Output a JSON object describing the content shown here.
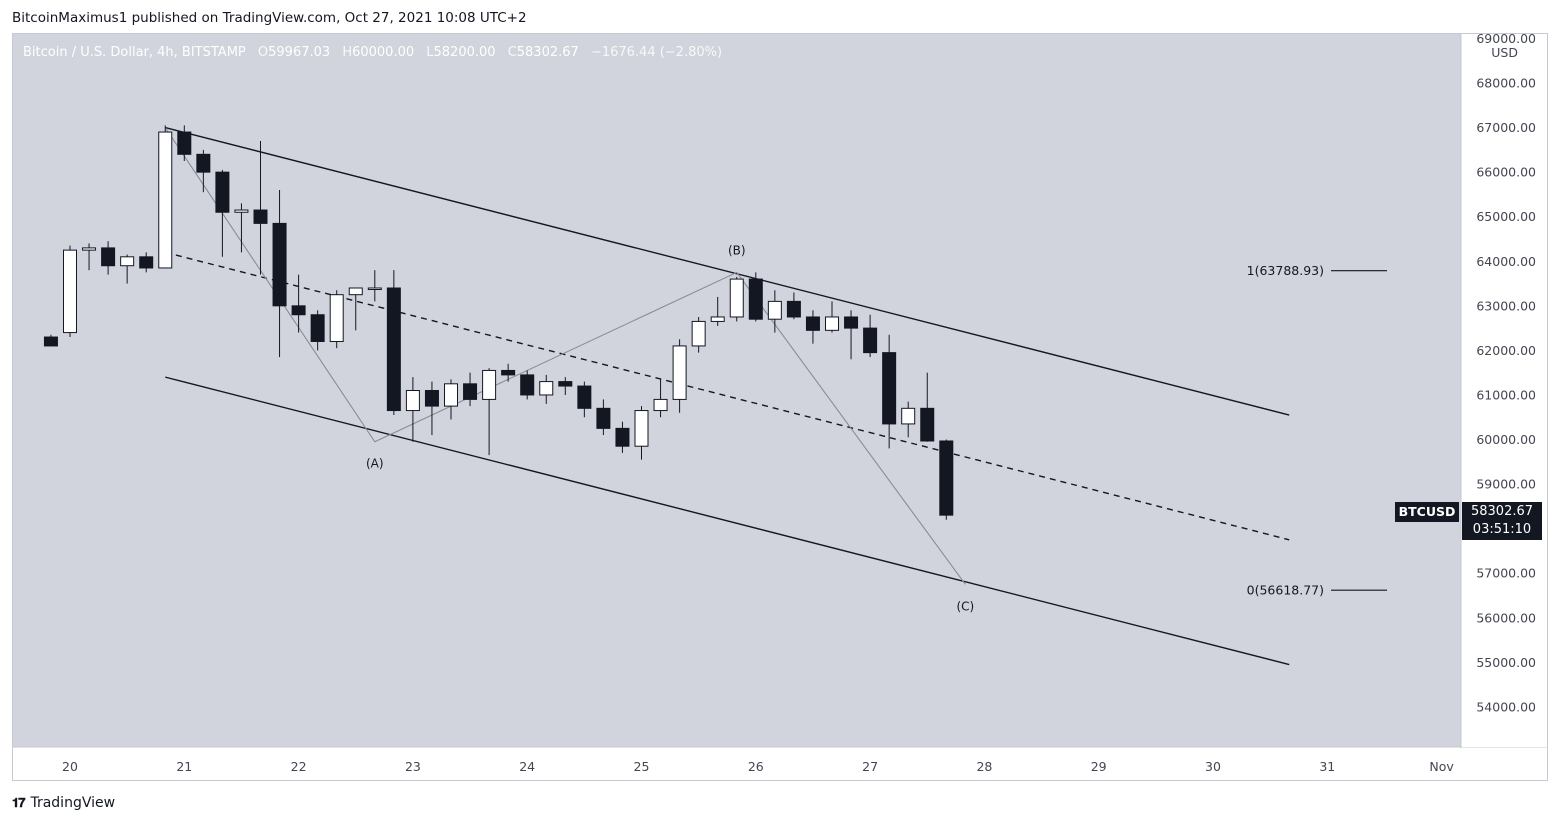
{
  "publish_line": "BitcoinMaximus1 published on TradingView.com, Oct 27, 2021 10:08 UTC+2",
  "legend": {
    "symbol": "Bitcoin / U.S. Dollar, 4h, BITSTAMP",
    "open_label": "O",
    "open": "59967.03",
    "high_label": "H",
    "high": "60000.00",
    "low_label": "L",
    "low": "58200.00",
    "close_label": "C",
    "close": "58302.67",
    "change": "−1676.44 (−2.80%)"
  },
  "footer": {
    "logo_glyph": "𝟏𝟕",
    "brand": "TradingView"
  },
  "price_badge": {
    "symbol": "BTCUSD",
    "price": "58302.67",
    "countdown": "03:51:10"
  },
  "colors": {
    "plot_bg": "#d1d4dc",
    "axis_bg": "#ffffff",
    "bull_fill": "#ffffff",
    "bear_fill": "#131722",
    "candle_outline": "#131722",
    "channel_line": "#131722",
    "wave_line": "#8a8d96",
    "badge_bg": "#131722"
  },
  "chart_data": {
    "type": "candlestick",
    "title": "",
    "currency": "USD",
    "x_labels": [
      "20",
      "21",
      "22",
      "23",
      "24",
      "25",
      "26",
      "27",
      "28",
      "29",
      "30",
      "31",
      "Nov"
    ],
    "y_ticks": [
      54000,
      55000,
      56000,
      57000,
      58000,
      59000,
      60000,
      61000,
      62000,
      63000,
      64000,
      65000,
      66000,
      67000,
      68000,
      69000
    ],
    "y_tick_labels": [
      "54000.00",
      "55000.00",
      "56000.00",
      "57000.00",
      "58000.00",
      "59000.00",
      "60000.00",
      "61000.00",
      "62000.00",
      "63000.00",
      "64000.00",
      "65000.00",
      "66000.00",
      "67000.00",
      "68000.00",
      "69000.00"
    ],
    "ylim": [
      53100,
      69100
    ],
    "candle_interval_hours": 4,
    "candles": [
      {
        "t": "Oct 19 20:00",
        "o": 62300,
        "h": 62350,
        "l": 62100,
        "c": 62100
      },
      {
        "t": "Oct 20 00:00",
        "o": 62400,
        "h": 64350,
        "l": 62300,
        "c": 64250
      },
      {
        "t": "Oct 20 04:00",
        "o": 64250,
        "h": 64400,
        "l": 63800,
        "c": 64300
      },
      {
        "t": "Oct 20 08:00",
        "o": 64300,
        "h": 64450,
        "l": 63700,
        "c": 63900
      },
      {
        "t": "Oct 20 12:00",
        "o": 63900,
        "h": 64150,
        "l": 63500,
        "c": 64100
      },
      {
        "t": "Oct 20 16:00",
        "o": 64100,
        "h": 64200,
        "l": 63750,
        "c": 63850
      },
      {
        "t": "Oct 20 20:00",
        "o": 63850,
        "h": 67050,
        "l": 63850,
        "c": 66900
      },
      {
        "t": "Oct 21 00:00",
        "o": 66900,
        "h": 67050,
        "l": 66250,
        "c": 66400
      },
      {
        "t": "Oct 21 04:00",
        "o": 66400,
        "h": 66500,
        "l": 65550,
        "c": 66000
      },
      {
        "t": "Oct 21 08:00",
        "o": 66000,
        "h": 66050,
        "l": 64100,
        "c": 65100
      },
      {
        "t": "Oct 21 12:00",
        "o": 65100,
        "h": 65300,
        "l": 64200,
        "c": 65150
      },
      {
        "t": "Oct 21 16:00",
        "o": 65150,
        "h": 66700,
        "l": 63700,
        "c": 64850
      },
      {
        "t": "Oct 21 20:00",
        "o": 64850,
        "h": 65600,
        "l": 61850,
        "c": 63000
      },
      {
        "t": "Oct 22 00:00",
        "o": 63000,
        "h": 63700,
        "l": 62400,
        "c": 62800
      },
      {
        "t": "Oct 22 04:00",
        "o": 62800,
        "h": 62900,
        "l": 62000,
        "c": 62200
      },
      {
        "t": "Oct 22 08:00",
        "o": 62200,
        "h": 63350,
        "l": 62050,
        "c": 63250
      },
      {
        "t": "Oct 22 12:00",
        "o": 63250,
        "h": 63400,
        "l": 62450,
        "c": 63400
      },
      {
        "t": "Oct 22 16:00",
        "o": 63400,
        "h": 63800,
        "l": 63100,
        "c": 63400
      },
      {
        "t": "Oct 22 20:00",
        "o": 63400,
        "h": 63800,
        "l": 60550,
        "c": 60650
      },
      {
        "t": "Oct 23 00:00",
        "o": 60650,
        "h": 61400,
        "l": 59950,
        "c": 61100
      },
      {
        "t": "Oct 23 04:00",
        "o": 61100,
        "h": 61300,
        "l": 60100,
        "c": 60750
      },
      {
        "t": "Oct 23 08:00",
        "o": 60750,
        "h": 61350,
        "l": 60450,
        "c": 61250
      },
      {
        "t": "Oct 23 12:00",
        "o": 61250,
        "h": 61500,
        "l": 60750,
        "c": 60900
      },
      {
        "t": "Oct 23 16:00",
        "o": 60900,
        "h": 61600,
        "l": 59650,
        "c": 61550
      },
      {
        "t": "Oct 23 20:00",
        "o": 61550,
        "h": 61700,
        "l": 61300,
        "c": 61450
      },
      {
        "t": "Oct 24 00:00",
        "o": 61450,
        "h": 61550,
        "l": 60900,
        "c": 61000
      },
      {
        "t": "Oct 24 04:00",
        "o": 61000,
        "h": 61450,
        "l": 60800,
        "c": 61300
      },
      {
        "t": "Oct 24 08:00",
        "o": 61300,
        "h": 61400,
        "l": 61000,
        "c": 61200
      },
      {
        "t": "Oct 24 12:00",
        "o": 61200,
        "h": 61300,
        "l": 60500,
        "c": 60700
      },
      {
        "t": "Oct 24 16:00",
        "o": 60700,
        "h": 60900,
        "l": 60100,
        "c": 60250
      },
      {
        "t": "Oct 24 20:00",
        "o": 60250,
        "h": 60400,
        "l": 59700,
        "c": 59850
      },
      {
        "t": "Oct 25 00:00",
        "o": 59850,
        "h": 60750,
        "l": 59550,
        "c": 60650
      },
      {
        "t": "Oct 25 04:00",
        "o": 60650,
        "h": 61350,
        "l": 60500,
        "c": 60900
      },
      {
        "t": "Oct 25 08:00",
        "o": 60900,
        "h": 62250,
        "l": 60600,
        "c": 62100
      },
      {
        "t": "Oct 25 12:00",
        "o": 62100,
        "h": 62750,
        "l": 61950,
        "c": 62650
      },
      {
        "t": "Oct 25 16:00",
        "o": 62650,
        "h": 63200,
        "l": 62550,
        "c": 62750
      },
      {
        "t": "Oct 25 20:00",
        "o": 62750,
        "h": 63650,
        "l": 62650,
        "c": 63600
      },
      {
        "t": "Oct 26 00:00",
        "o": 63600,
        "h": 63750,
        "l": 62650,
        "c": 62700
      },
      {
        "t": "Oct 26 04:00",
        "o": 62700,
        "h": 63350,
        "l": 62400,
        "c": 63100
      },
      {
        "t": "Oct 26 08:00",
        "o": 63100,
        "h": 63300,
        "l": 62700,
        "c": 62750
      },
      {
        "t": "Oct 26 12:00",
        "o": 62750,
        "h": 62900,
        "l": 62150,
        "c": 62450
      },
      {
        "t": "Oct 26 16:00",
        "o": 62450,
        "h": 63100,
        "l": 62400,
        "c": 62750
      },
      {
        "t": "Oct 26 20:00",
        "o": 62750,
        "h": 62900,
        "l": 61800,
        "c": 62500
      },
      {
        "t": "Oct 27 00:00",
        "o": 62500,
        "h": 62800,
        "l": 61850,
        "c": 61950
      },
      {
        "t": "Oct 27 04:00",
        "o": 61950,
        "h": 62350,
        "l": 59800,
        "c": 60350
      },
      {
        "t": "Oct 27 08:00",
        "o": 60350,
        "h": 60850,
        "l": 60050,
        "c": 60700
      },
      {
        "t": "Oct 27 12:00",
        "o": 60700,
        "h": 61500,
        "l": 59950,
        "c": 59967
      },
      {
        "t": "Oct 27 16:00",
        "o": 59967.03,
        "h": 60000,
        "l": 58200,
        "c": 58302.67
      }
    ],
    "channel_upper": [
      {
        "t": "Oct 20 20:00",
        "y": 67000
      },
      {
        "t": "Oct 30 16:00",
        "y": 60550
      }
    ],
    "channel_middle": [
      {
        "t": "Oct 20 20:00",
        "y": 64200
      },
      {
        "t": "Oct 30 16:00",
        "y": 57750
      }
    ],
    "channel_lower": [
      {
        "t": "Oct 20 20:00",
        "y": 61400
      },
      {
        "t": "Oct 30 16:00",
        "y": 54950
      }
    ],
    "wave_path": [
      {
        "t": "Oct 20 20:00",
        "y": 67000
      },
      {
        "t": "Oct 22 16:00",
        "y": 59950,
        "label": "(A)"
      },
      {
        "t": "Oct 25 20:00",
        "y": 63750,
        "label": "(B)"
      },
      {
        "t": "Oct 27 20:00",
        "y": 56750,
        "label": "(C)"
      }
    ],
    "fib_levels": [
      {
        "label": "1(63788.93)",
        "value": 63788.93
      },
      {
        "label": "0(56618.77)",
        "value": 56618.77
      }
    ]
  }
}
